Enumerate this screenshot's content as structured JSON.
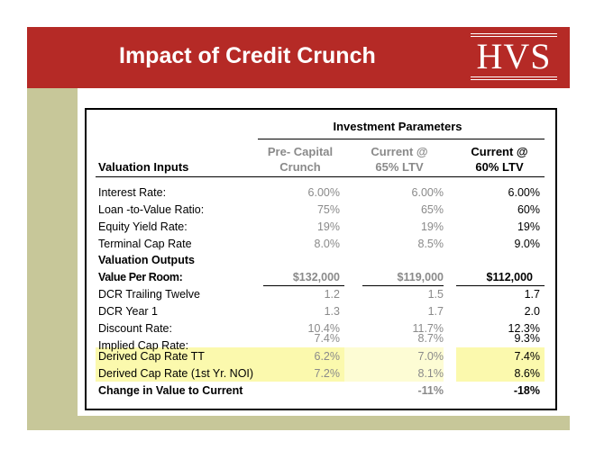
{
  "slide": {
    "title": "Impact of Credit Crunch",
    "logo": "HVS"
  },
  "table": {
    "group_header": "Investment Parameters",
    "row_header": "Valuation Inputs",
    "columns": [
      {
        "line1": "Pre- Capital",
        "line2": "Crunch"
      },
      {
        "line1": "Current @",
        "line2": "65% LTV"
      },
      {
        "line1": "Current @",
        "line2": "60% LTV"
      }
    ],
    "inputs": [
      {
        "label": "Interest Rate:",
        "values": [
          "6.00%",
          "6.00%",
          "6.00%"
        ]
      },
      {
        "label": "Loan -to-Value Ratio:",
        "values": [
          "75%",
          "65%",
          "60%"
        ]
      },
      {
        "label": "Equity Yield Rate:",
        "values": [
          "19%",
          "19%",
          "19%"
        ]
      },
      {
        "label": "Terminal Cap Rate",
        "values": [
          "8.0%",
          "8.5%",
          "9.0%"
        ]
      }
    ],
    "outputs_header": "Valuation Outputs",
    "outputs": [
      {
        "label": "Value Per Room:",
        "values": [
          "$132,000",
          "$119,000",
          "$112,000"
        ]
      },
      {
        "label": "DCR Trailing Twelve",
        "values": [
          "1.2",
          "1.5",
          "1.7"
        ]
      },
      {
        "label": "DCR Year 1",
        "values": [
          "1.3",
          "1.7",
          "2.0"
        ]
      },
      {
        "label": "Discount Rate:",
        "values": [
          "10.4%",
          "11.7%",
          "12.3%"
        ]
      },
      {
        "label": "Implied Cap Rate:",
        "values": [
          "7.4%",
          "8.7%",
          "9.3%"
        ]
      },
      {
        "label": "Derived Cap Rate TT",
        "values": [
          "6.2%",
          "7.0%",
          "7.4%"
        ]
      },
      {
        "label": "Derived  Cap Rate (1st Yr. NOI)",
        "values": [
          "7.2%",
          "8.1%",
          "8.6%"
        ]
      }
    ],
    "change": {
      "label": "Change in Value to Current",
      "values": [
        "",
        "-11%",
        "-18%"
      ]
    }
  },
  "colors": {
    "header_red": "#b52a26",
    "olive": "#c7c799",
    "highlight": "#fbf9ad"
  }
}
